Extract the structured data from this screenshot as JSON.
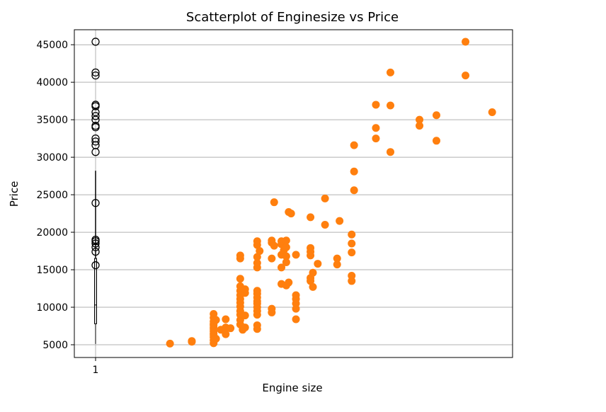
{
  "chart_data": {
    "type": "scatter",
    "title": "Scatterplot of Enginesize vs Price",
    "xlabel": "Engine size",
    "ylabel": "Price",
    "ylim": [
      3300,
      47000
    ],
    "xticks": [
      {
        "value": 1,
        "label": "1"
      }
    ],
    "yticks": [
      5000,
      10000,
      15000,
      20000,
      25000,
      30000,
      35000,
      40000,
      45000
    ],
    "grid": "horizontal",
    "colors": {
      "scatter": "#ff7f0e",
      "boxplot": "#000000",
      "grid": "#b0b0b0"
    },
    "boxplot": {
      "x": 1,
      "whisker_low": 5100,
      "q1": 7800,
      "median": 10300,
      "q3": 16500,
      "whisker_high": 28200,
      "fliers": [
        30700,
        31600,
        32100,
        32500,
        34000,
        34200,
        35000,
        35500,
        36000,
        36800,
        37000,
        40900,
        41300,
        45400,
        23900,
        19000,
        18800,
        18500,
        18000,
        17400,
        15600
      ]
    },
    "series": [
      {
        "values": [
          [
            61,
            5150
          ],
          [
            70,
            5400
          ],
          [
            70,
            5500
          ],
          [
            79,
            5200
          ],
          [
            79,
            5600
          ],
          [
            79,
            6000
          ],
          [
            79,
            6300
          ],
          [
            79,
            6500
          ],
          [
            79,
            6800
          ],
          [
            79,
            7100
          ],
          [
            79,
            7300
          ],
          [
            79,
            7600
          ],
          [
            79,
            7800
          ],
          [
            79,
            8100
          ],
          [
            79,
            8600
          ],
          [
            79,
            9100
          ],
          [
            80,
            8300
          ],
          [
            80,
            5800
          ],
          [
            82,
            7000
          ],
          [
            84,
            6400
          ],
          [
            84,
            7300
          ],
          [
            84,
            8400
          ],
          [
            86,
            7200
          ],
          [
            90,
            7700
          ],
          [
            90,
            8300
          ],
          [
            90,
            9000
          ],
          [
            90,
            9500
          ],
          [
            90,
            10100
          ],
          [
            90,
            10600
          ],
          [
            90,
            11100
          ],
          [
            90,
            11600
          ],
          [
            90,
            12200
          ],
          [
            90,
            12800
          ],
          [
            90,
            13800
          ],
          [
            90,
            16500
          ],
          [
            90,
            16900
          ],
          [
            91,
            7000
          ],
          [
            92,
            7300
          ],
          [
            92,
            8900
          ],
          [
            92,
            11900
          ],
          [
            92,
            12400
          ],
          [
            97,
            7100
          ],
          [
            97,
            7600
          ],
          [
            97,
            9000
          ],
          [
            97,
            9500
          ],
          [
            97,
            10000
          ],
          [
            97,
            10500
          ],
          [
            97,
            10800
          ],
          [
            97,
            11300
          ],
          [
            97,
            11800
          ],
          [
            97,
            12200
          ],
          [
            97,
            15300
          ],
          [
            97,
            15900
          ],
          [
            97,
            16700
          ],
          [
            97,
            18300
          ],
          [
            97,
            18800
          ],
          [
            98,
            17500
          ],
          [
            103,
            9300
          ],
          [
            103,
            9800
          ],
          [
            103,
            16500
          ],
          [
            103,
            18600
          ],
          [
            103,
            18900
          ],
          [
            104,
            24000
          ],
          [
            104,
            18200
          ],
          [
            107,
            13100
          ],
          [
            107,
            15300
          ],
          [
            107,
            17000
          ],
          [
            107,
            18400
          ],
          [
            107,
            18800
          ],
          [
            108,
            17600
          ],
          [
            109,
            12900
          ],
          [
            109,
            16000
          ],
          [
            109,
            16800
          ],
          [
            109,
            18000
          ],
          [
            109,
            18900
          ],
          [
            110,
            13300
          ],
          [
            110,
            22700
          ],
          [
            111,
            22500
          ],
          [
            113,
            8400
          ],
          [
            113,
            9800
          ],
          [
            113,
            10500
          ],
          [
            113,
            11100
          ],
          [
            113,
            11600
          ],
          [
            113,
            17000
          ],
          [
            119,
            13500
          ],
          [
            119,
            13900
          ],
          [
            119,
            16900
          ],
          [
            119,
            17400
          ],
          [
            119,
            17900
          ],
          [
            119,
            22000
          ],
          [
            120,
            12700
          ],
          [
            120,
            14600
          ],
          [
            122,
            15800
          ],
          [
            125,
            21000
          ],
          [
            125,
            24500
          ],
          [
            130,
            15700
          ],
          [
            130,
            16500
          ],
          [
            131,
            21500
          ],
          [
            136,
            13500
          ],
          [
            136,
            14200
          ],
          [
            136,
            17300
          ],
          [
            136,
            18500
          ],
          [
            136,
            19700
          ],
          [
            137,
            25600
          ],
          [
            137,
            28100
          ],
          [
            137,
            31600
          ],
          [
            146,
            33900
          ],
          [
            146,
            32500
          ],
          [
            146,
            37000
          ],
          [
            152,
            30700
          ],
          [
            152,
            36900
          ],
          [
            152,
            41300
          ],
          [
            164,
            34200
          ],
          [
            164,
            35000
          ],
          [
            171,
            32200
          ],
          [
            171,
            35600
          ],
          [
            183,
            45400
          ],
          [
            183,
            40900
          ],
          [
            194,
            36000
          ]
        ]
      }
    ]
  }
}
